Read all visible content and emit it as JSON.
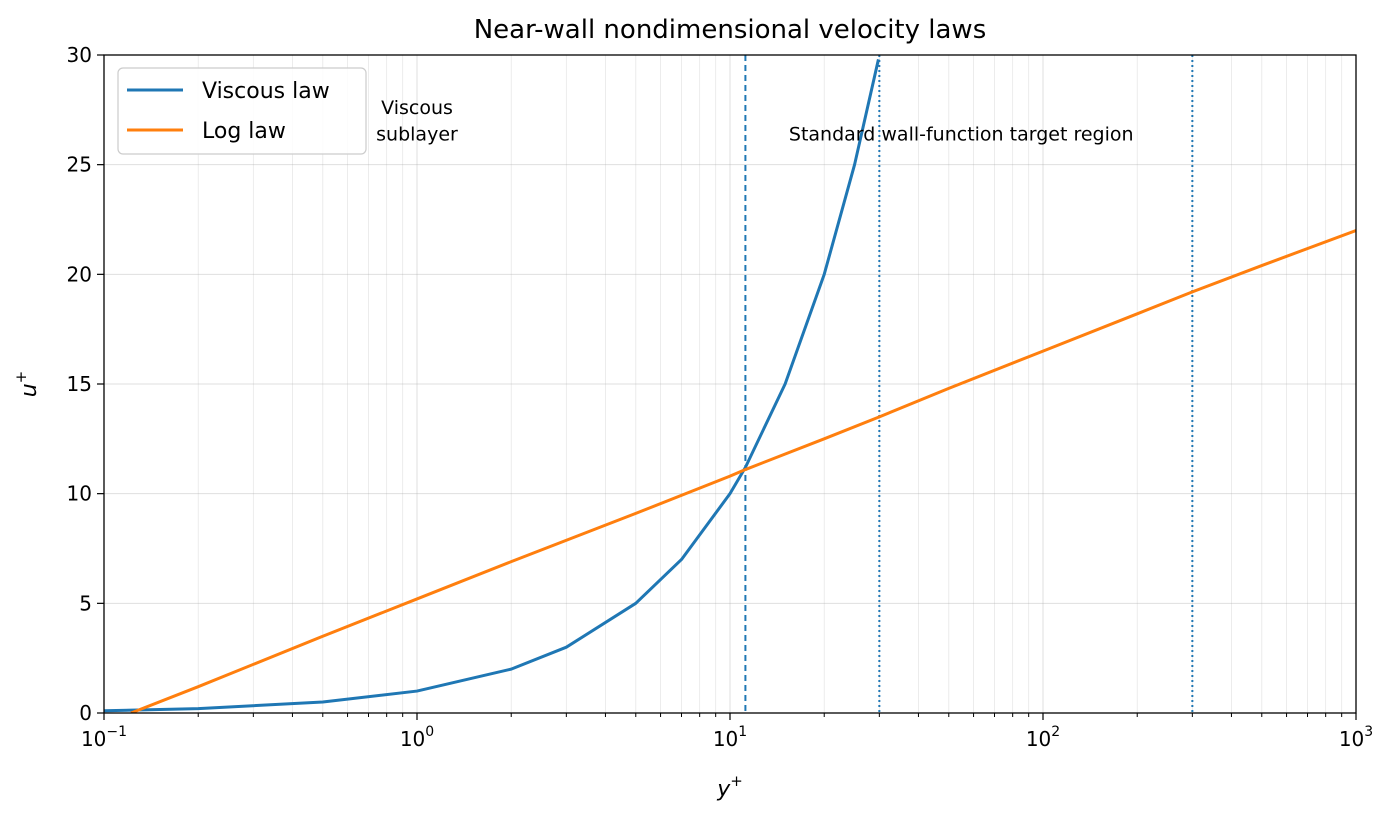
{
  "chart_data": {
    "type": "line",
    "title": "Near-wall nondimensional velocity laws",
    "xlabel": "y",
    "xlabel_sup": "+",
    "ylabel": "u",
    "ylabel_sup": "+",
    "x_scale": "log",
    "xlim": [
      0.1,
      1000
    ],
    "ylim": [
      0,
      30
    ],
    "x_tick_labels": [
      {
        "value": 0.1,
        "base": "10",
        "exp": "−1"
      },
      {
        "value": 1,
        "base": "10",
        "exp": "0"
      },
      {
        "value": 10,
        "base": "10",
        "exp": "1"
      },
      {
        "value": 100,
        "base": "10",
        "exp": "2"
      },
      {
        "value": 1000,
        "base": "10",
        "exp": "3"
      }
    ],
    "y_ticks": [
      0,
      5,
      10,
      15,
      20,
      25,
      30
    ],
    "y_tick_labels": [
      "0",
      "5",
      "10",
      "15",
      "20",
      "25",
      "30"
    ],
    "grid": true,
    "legend": "top-left",
    "series": [
      {
        "name": "Viscous law",
        "color": "#1f77b4",
        "x": [
          0.1,
          0.2,
          0.5,
          1,
          2,
          3,
          5,
          7,
          10,
          11.2,
          15,
          20,
          25,
          29.8
        ],
        "y": [
          0.1,
          0.2,
          0.5,
          1,
          2,
          3,
          5,
          7,
          10,
          11.2,
          15,
          20,
          25,
          29.8
        ]
      },
      {
        "name": "Log law",
        "color": "#ff7f0e",
        "x": [
          0.122,
          0.2,
          0.5,
          1,
          2,
          5,
          10,
          11.2,
          20,
          30,
          50,
          100,
          200,
          300,
          500,
          1000
        ],
        "y": [
          0.0,
          1.2,
          3.5,
          5.2,
          6.9,
          9.1,
          10.8,
          11.1,
          12.5,
          13.5,
          14.8,
          16.5,
          18.2,
          19.2,
          20.4,
          22.0
        ]
      }
    ],
    "vlines": [
      {
        "x": 11.2,
        "style": "dashed",
        "color": "#1f77b4"
      },
      {
        "x": 30,
        "style": "dotted",
        "color": "#1f77b4"
      },
      {
        "x": 300,
        "style": "dotted",
        "color": "#1f77b4"
      }
    ],
    "annotations": [
      {
        "text": "Viscous",
        "x": 1.0,
        "y": 27.3
      },
      {
        "text": "sublayer",
        "x": 1.0,
        "y": 26.1
      },
      {
        "text": "Standard wall-function target region",
        "x": 54.8,
        "y": 26.1
      }
    ]
  }
}
